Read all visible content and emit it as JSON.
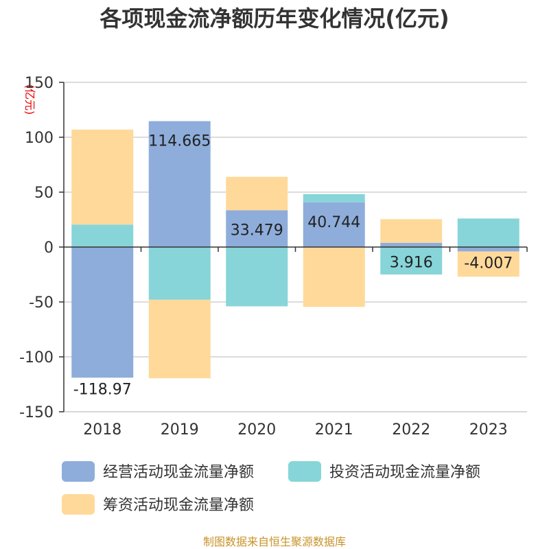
{
  "title": "各项现金流净额历年变化情况(亿元)",
  "unit_label": "(亿元)",
  "source": "制图数据来自恒生聚源数据库",
  "chart_data": {
    "type": "bar",
    "stacked": true,
    "categories": [
      "2018",
      "2019",
      "2020",
      "2021",
      "2022",
      "2023"
    ],
    "series": [
      {
        "name": "经营活动现金流量净额",
        "color": "#8eaddb",
        "values": [
          -118.97,
          114.665,
          33.479,
          40.744,
          3.916,
          -4.007
        ]
      },
      {
        "name": "投资活动现金流量净额",
        "color": "#87d5d8",
        "values": [
          20.5,
          -48,
          -54,
          7.5,
          -25,
          26
        ]
      },
      {
        "name": "筹资活动现金流量净额",
        "color": "#ffd99a",
        "values": [
          86.5,
          -71.5,
          30.5,
          -54.5,
          21.5,
          -23
        ]
      }
    ],
    "data_labels": [
      "-118.97",
      "114.665",
      "33.479",
      "40.744",
      "3.916",
      "-4.007"
    ],
    "yticks": [
      150,
      100,
      50,
      0,
      -50,
      -100,
      -150
    ],
    "ylim": [
      -150,
      150
    ],
    "grid": true,
    "legend_position": "bottom"
  }
}
